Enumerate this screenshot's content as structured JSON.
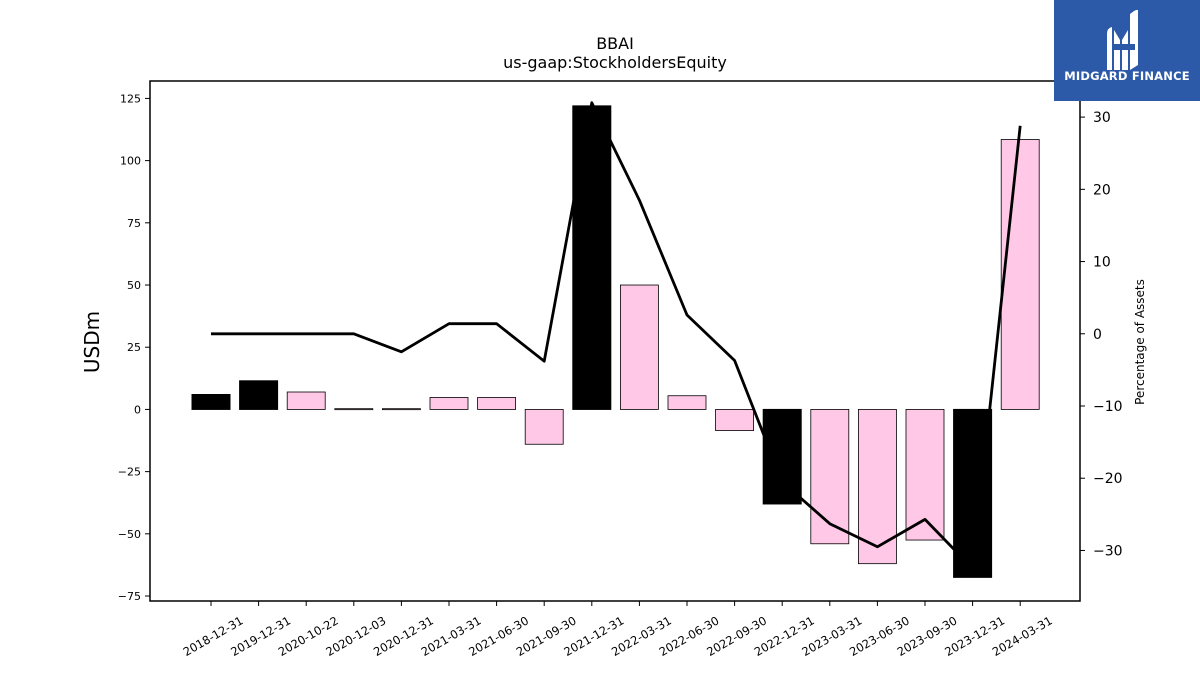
{
  "logo": {
    "text": "MIDGARD FINANCE",
    "background": "#2d5aa8"
  },
  "chart_data": {
    "type": "bar",
    "title": "BBAI",
    "subtitle": "us-gaap:StockholdersEquity",
    "ylabel": "USDm",
    "y2label": "Percentage of Assets",
    "categories": [
      "2018-12-31",
      "2019-12-31",
      "2020-10-22",
      "2020-12-03",
      "2020-12-31",
      "2021-03-31",
      "2021-06-30",
      "2021-09-30",
      "2021-12-31",
      "2022-03-31",
      "2022-06-30",
      "2022-09-30",
      "2022-12-31",
      "2023-03-31",
      "2023-06-30",
      "2023-09-30",
      "2023-12-31",
      "2024-03-31"
    ],
    "values": [
      6,
      11.5,
      7,
      0.3,
      0.3,
      4.8,
      4.8,
      -14,
      122,
      50,
      5.5,
      -8.5,
      -38,
      -54,
      -62,
      -52.5,
      -67.5,
      108.5
    ],
    "bar_colors": [
      "#000000",
      "#000000",
      "#ffc8e6",
      "#ffc8e6",
      "#ffc8e6",
      "#ffc8e6",
      "#ffc8e6",
      "#ffc8e6",
      "#000000",
      "#ffc8e6",
      "#ffc8e6",
      "#ffc8e6",
      "#000000",
      "#ffc8e6",
      "#ffc8e6",
      "#ffc8e6",
      "#000000",
      "#ffc8e6"
    ],
    "line_values": [
      0,
      0,
      0,
      0,
      -2.5,
      1.4,
      1.4,
      -3.8,
      32,
      18.5,
      2.6,
      -3.7,
      -20.5,
      -26.3,
      -29.5,
      -25.7,
      -32.5,
      28.8
    ],
    "ylim": [
      -77,
      132
    ],
    "y_ticks": [
      -75,
      -50,
      -25,
      0,
      25,
      50,
      75,
      100,
      125
    ],
    "y2lim": [
      -37,
      35
    ],
    "y2_ticks": [
      -30,
      -20,
      -10,
      0,
      10,
      20,
      30
    ],
    "grid": false,
    "legend": "none"
  }
}
